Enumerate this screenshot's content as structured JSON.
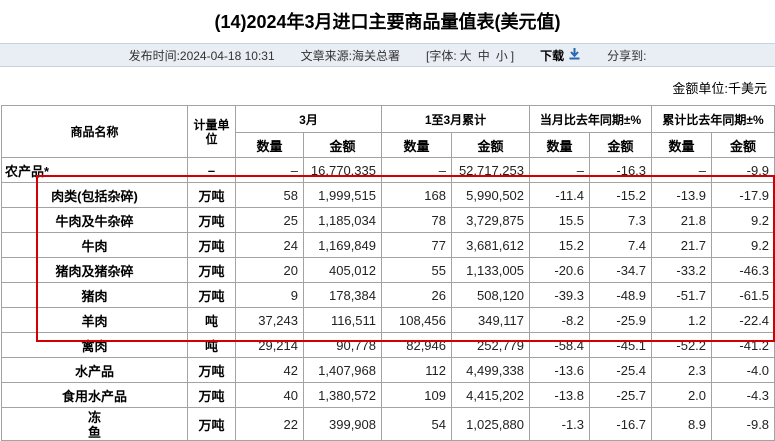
{
  "header": {
    "title": "(14)2024年3月进口主要商品量值表(美元值)"
  },
  "meta": {
    "publish_time": "发布时间:2024-04-18 10:31",
    "source": "文章来源:海关总署",
    "font_label_open": "[字体:",
    "font_sizes": [
      "大",
      "中",
      "小"
    ],
    "font_label_close": "]",
    "download_label": "下载",
    "download_icon": "download-arrow",
    "download_icon_color": "#2766b1",
    "share_label": "分享到:"
  },
  "unit_note": "金额单位:千美元",
  "annotation": {
    "type": "red-highlight-box",
    "color": "#d40000",
    "rows_covered": "肉类(包括杂碎) 至 禽肉"
  },
  "table": {
    "headers": {
      "commodity": "商品名称",
      "unit": "计量单位",
      "march": "3月",
      "cumulative": "1至3月累计",
      "month_yoy": "当月比去年同期±%",
      "cum_yoy": "累计比去年同期±%",
      "sub": [
        "数量",
        "金额",
        "数量",
        "金额",
        "数量",
        "金额",
        "数量",
        "金额"
      ]
    },
    "rows": [
      {
        "name": "农产品*",
        "align": "left",
        "unit": "–",
        "values": [
          "–",
          "16,770,335",
          "–",
          "52,717,253",
          "–",
          "-16.3",
          "–",
          "-9.9"
        ]
      },
      {
        "name": "肉类(包括杂碎)",
        "unit": "万吨",
        "values": [
          "58",
          "1,999,515",
          "168",
          "5,990,502",
          "-11.4",
          "-15.2",
          "-13.9",
          "-17.9"
        ]
      },
      {
        "name": "牛肉及牛杂碎",
        "unit": "万吨",
        "values": [
          "25",
          "1,185,034",
          "78",
          "3,729,875",
          "15.5",
          "7.3",
          "21.8",
          "9.2"
        ]
      },
      {
        "name": "牛肉",
        "unit": "万吨",
        "values": [
          "24",
          "1,169,849",
          "77",
          "3,681,612",
          "15.2",
          "7.4",
          "21.7",
          "9.2"
        ]
      },
      {
        "name": "猪肉及猪杂碎",
        "unit": "万吨",
        "values": [
          "20",
          "405,012",
          "55",
          "1,133,005",
          "-20.6",
          "-34.7",
          "-33.2",
          "-46.3"
        ]
      },
      {
        "name": "猪肉",
        "unit": "万吨",
        "values": [
          "9",
          "178,384",
          "26",
          "508,120",
          "-39.3",
          "-48.9",
          "-51.7",
          "-61.5"
        ]
      },
      {
        "name": "羊肉",
        "unit": "吨",
        "values": [
          "37,243",
          "116,511",
          "108,456",
          "349,117",
          "-8.2",
          "-25.9",
          "1.2",
          "-22.4"
        ]
      },
      {
        "name": "禽肉",
        "unit": "吨",
        "values": [
          "29,214",
          "90,778",
          "82,946",
          "252,779",
          "-58.4",
          "-45.1",
          "-52.2",
          "-41.2"
        ]
      },
      {
        "name": "水产品",
        "unit": "万吨",
        "values": [
          "42",
          "1,407,968",
          "112",
          "4,499,338",
          "-13.6",
          "-25.4",
          "2.3",
          "-4.0"
        ]
      },
      {
        "name": "食用水产品",
        "unit": "万吨",
        "values": [
          "40",
          "1,380,572",
          "109",
          "4,415,202",
          "-13.8",
          "-25.7",
          "2.0",
          "-4.3"
        ]
      },
      {
        "name": "冻鱼",
        "stack": true,
        "unit": "万吨",
        "values": [
          "22",
          "399,908",
          "54",
          "1,025,880",
          "-1.3",
          "-16.7",
          "8.9",
          "-9.8"
        ]
      }
    ]
  }
}
